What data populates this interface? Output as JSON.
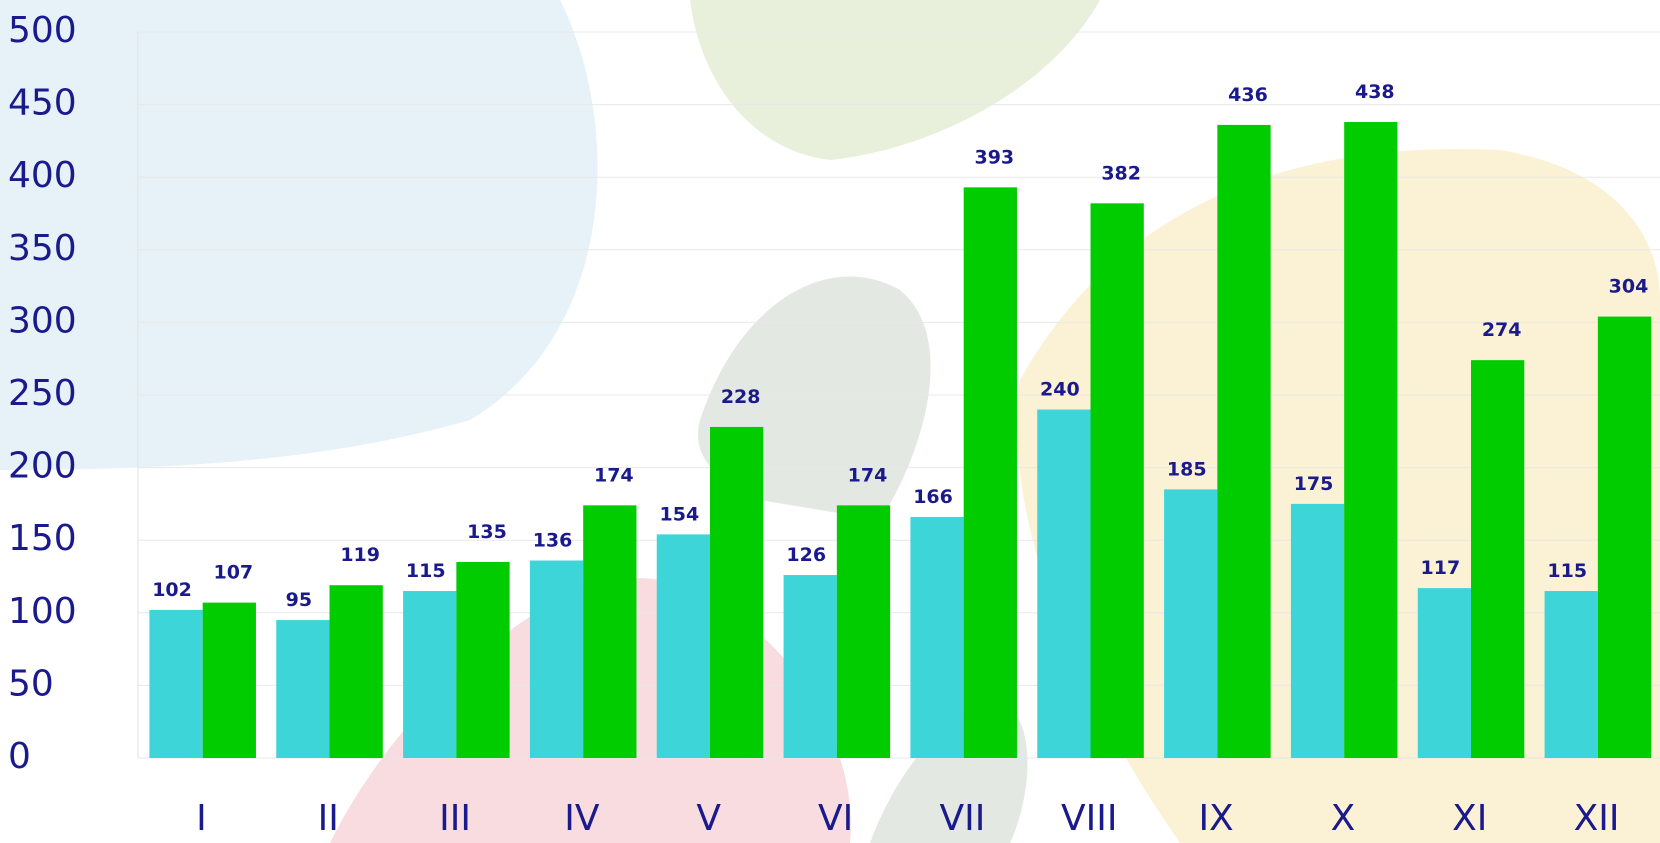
{
  "chart_data": {
    "type": "bar",
    "categories": [
      "I",
      "II",
      "III",
      "IV",
      "V",
      "VI",
      "VII",
      "VIII",
      "IX",
      "X",
      "XI",
      "XII"
    ],
    "series": [
      {
        "color": "#3dd5d8",
        "values": [
          102,
          95,
          115,
          136,
          154,
          126,
          166,
          240,
          185,
          175,
          117,
          115
        ]
      },
      {
        "color": "#00cc00",
        "values": [
          107,
          119,
          135,
          174,
          228,
          174,
          393,
          382,
          436,
          438,
          274,
          304
        ]
      }
    ],
    "ylim": [
      0,
      500
    ],
    "yticks": [
      0,
      50,
      100,
      150,
      200,
      250,
      300,
      350,
      400,
      450,
      500
    ],
    "grid": true
  }
}
